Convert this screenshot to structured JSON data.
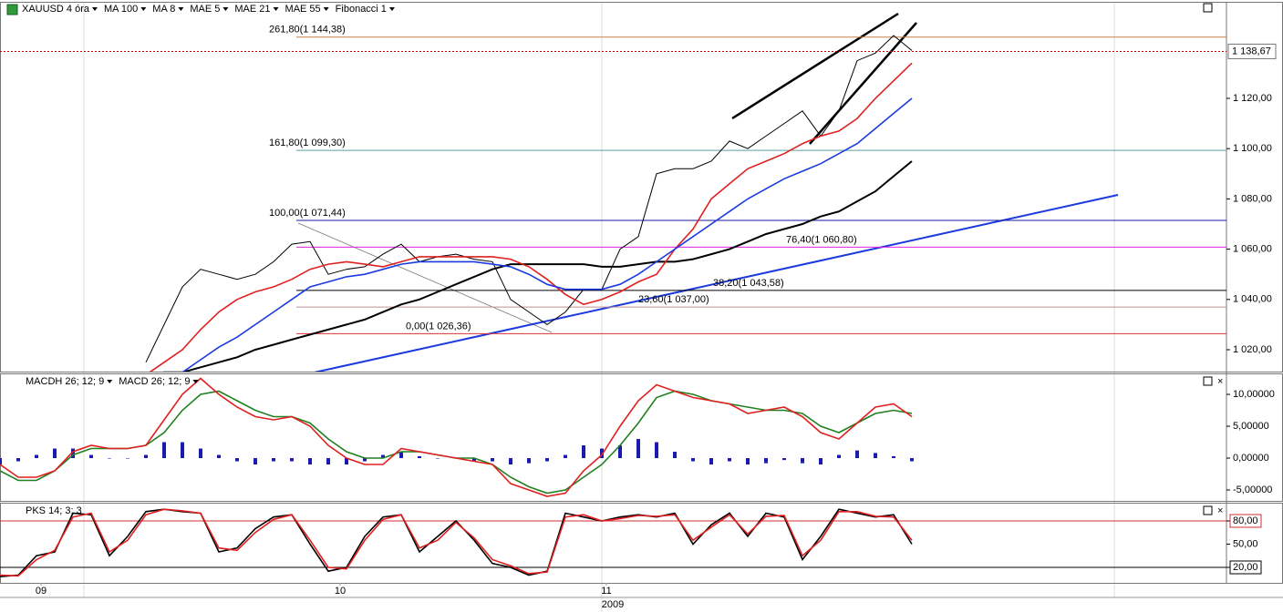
{
  "chart_data": [
    {
      "type": "line",
      "symbol": "XAUUSD 4 óra",
      "indicators": [
        {
          "name": "MA 8",
          "color": "#000000"
        },
        {
          "name": "MAE 5",
          "color": "#d02020"
        },
        {
          "name": "Fibonacci 1",
          "color": "#000000"
        }
      ],
      "xlim": [
        -8,
        59.25
      ],
      "xticks": [
        {
          "value": -5.75,
          "label": "09"
        },
        {
          "value": 10.65,
          "label": "10"
        },
        {
          "value": 25.25,
          "label": "11"
        }
      ],
      "year": "2009",
      "ylim": [
        1011.3,
        1158.4
      ],
      "yticks": [
        {
          "value": 1020,
          "label": "1 020,00"
        },
        {
          "value": 1040,
          "label": "1 040,00"
        },
        {
          "value": 1060,
          "label": "1 060,00"
        },
        {
          "value": 1080,
          "label": "1 080,00"
        },
        {
          "value": 1100,
          "label": "1 100,00"
        },
        {
          "value": 1120,
          "label": "1 120,00"
        }
      ],
      "last": {
        "value": 1138.67,
        "label": "1 138,67",
        "color": "#c00000"
      },
      "levels": [
        {
          "label": "261,80(1 144,38)",
          "value": 1144.38,
          "color": "#c8804a"
        },
        {
          "label": "161,80(1 099,30)",
          "value": 1099.3,
          "color": "#5f9ea0"
        },
        {
          "label": "100,00(1 071,44)",
          "value": 1071.44,
          "color": "#1a1aa0"
        },
        {
          "label": "76,40(1 060,80)",
          "value": 1060.8,
          "color": "#e020e0"
        },
        {
          "label": "38,20(1 043,58)",
          "value": 1043.58,
          "color": "#000000"
        },
        {
          "label": "23,60(1 037,00)",
          "value": 1037.0,
          "color": "#c09090"
        },
        {
          "label": "0,00(1 026,36)",
          "value": 1026.36,
          "color": "#e03030"
        }
      ],
      "series": [
        {
          "name": "XAUUSD 4 óra",
          "color": "#000000",
          "values": [
            1015,
            1030,
            1045,
            1052,
            1050,
            1048,
            1050,
            1055,
            1062,
            1063,
            1050,
            1052,
            1053,
            1058,
            1062,
            1055,
            1057,
            1058,
            1056,
            1055,
            1040,
            1035,
            1030,
            1035,
            1044,
            1044,
            1060,
            1065,
            1090,
            1092,
            1092,
            1095,
            1103,
            1100,
            1105,
            1110,
            1115,
            1105,
            1115,
            1135,
            1138,
            1145,
            1139
          ]
        },
        {
          "name": "MA 100",
          "color": "#000000",
          "values": [
            1010,
            1011,
            1011,
            1013,
            1015,
            1017,
            1020,
            1022,
            1024,
            1026,
            1028,
            1030,
            1032,
            1035,
            1038,
            1040,
            1043,
            1046,
            1049,
            1052,
            1054,
            1054,
            1054,
            1054,
            1054,
            1053,
            1053,
            1054,
            1055,
            1055,
            1056,
            1058,
            1060,
            1063,
            1066,
            1068,
            1070,
            1073,
            1075,
            1079,
            1083,
            1089,
            1095
          ]
        },
        {
          "name": "MAE 21",
          "color": "#e02020",
          "values": [
            1010,
            1015,
            1020,
            1028,
            1035,
            1040,
            1043,
            1045,
            1048,
            1052,
            1054,
            1055,
            1054,
            1053,
            1055,
            1057,
            1057,
            1057,
            1057,
            1057,
            1056,
            1053,
            1048,
            1042,
            1038,
            1040,
            1043,
            1047,
            1050,
            1060,
            1068,
            1080,
            1086,
            1092,
            1095,
            1098,
            1102,
            1105,
            1107,
            1112,
            1120,
            1127,
            1134
          ]
        },
        {
          "name": "MAE 55",
          "color": "#1a3ae0",
          "values": [
            null,
            null,
            1011,
            1016,
            1021,
            1025,
            1030,
            1035,
            1040,
            1045,
            1047,
            1049,
            1050,
            1052,
            1054,
            1055,
            1055,
            1055,
            1055,
            1054,
            1053,
            1050,
            1046,
            1044,
            1044,
            1044,
            1046,
            1050,
            1055,
            1060,
            1065,
            1070,
            1075,
            1080,
            1084,
            1088,
            1091,
            1094,
            1098,
            1102,
            1108,
            1114,
            1120
          ]
        }
      ]
    },
    {
      "type": "line",
      "xlim": [
        0,
        67.25
      ],
      "ylim": [
        -6.71,
        13.29
      ],
      "yticks": [
        {
          "value": 10,
          "label": "10,00000"
        },
        {
          "value": 5,
          "label": "5,00000"
        },
        {
          "value": 0,
          "label": "0,00000"
        },
        {
          "value": -5,
          "label": "-5,00000"
        }
      ],
      "series": [
        {
          "name": "MACDH 26; 12; 9",
          "color": "#1a1ab0",
          "style": "bar",
          "values": [
            -1,
            -0.5,
            0.5,
            1.5,
            1.5,
            0.5,
            0,
            0,
            0.5,
            2.5,
            2.5,
            1.5,
            0.5,
            -0.5,
            -1,
            -0.5,
            -0.5,
            -1,
            -1,
            -1,
            -0.5,
            0.5,
            1,
            0.3,
            0,
            0,
            -0.5,
            -0.5,
            -1,
            -0.8,
            -0.5,
            0.5,
            2,
            1.5,
            2,
            3,
            2.5,
            1,
            -0.5,
            -1,
            -0.5,
            -1,
            -0.8,
            -0.3,
            -0.8,
            -1,
            0.5,
            1.2,
            0.8,
            0.3,
            -0.5
          ]
        },
        {
          "name": "MACD 26; 12; 9",
          "color": "#208020",
          "values": [
            -2,
            -3.5,
            -3.5,
            -2,
            0.5,
            1.5,
            1.5,
            1.5,
            2,
            4,
            7.5,
            10,
            10.5,
            9,
            7.5,
            6.5,
            6.5,
            5.5,
            3,
            1,
            0,
            0,
            1,
            1,
            0.5,
            0,
            0,
            -1,
            -3,
            -4.5,
            -5.5,
            -5,
            -3,
            -1,
            2,
            5.5,
            9.5,
            10.5,
            10,
            9,
            8.5,
            8,
            7.5,
            7.5,
            7,
            5,
            4,
            5.5,
            7,
            7.5,
            7
          ]
        },
        {
          "color": "#e02020",
          "values": [
            -1,
            -3,
            -3,
            -2,
            1,
            2,
            1.5,
            1.5,
            2,
            6,
            10,
            12.5,
            10,
            8,
            6.5,
            6,
            6.5,
            5,
            2,
            0,
            -1,
            -1,
            1.5,
            1,
            0.5,
            0,
            -0.5,
            -1,
            -4,
            -5,
            -6,
            -5.5,
            -2,
            0.5,
            5,
            9,
            11.5,
            10.5,
            9.5,
            9,
            8.5,
            7,
            7.5,
            8,
            6.5,
            4,
            3,
            5.5,
            8,
            8.5,
            6.5
          ]
        }
      ]
    },
    {
      "type": "line",
      "title": "PKS 14; 3; 3",
      "xlim": [
        0,
        67.25
      ],
      "ylim": [
        0,
        103.5
      ],
      "yticks": [
        {
          "value": 80,
          "label": "80,00"
        },
        {
          "value": 50,
          "label": "50,00"
        },
        {
          "value": 20,
          "label": "20,00"
        }
      ],
      "levels": [
        {
          "value": 80,
          "color": "#d03030"
        },
        {
          "value": 20,
          "color": "#000000"
        }
      ],
      "series": [
        {
          "color": "#000000",
          "values": [
            8,
            10,
            35,
            40,
            90,
            88,
            35,
            60,
            92,
            95,
            92,
            90,
            40,
            45,
            70,
            85,
            88,
            50,
            15,
            20,
            60,
            85,
            88,
            40,
            60,
            80,
            55,
            25,
            20,
            10,
            15,
            90,
            85,
            80,
            85,
            88,
            85,
            90,
            50,
            75,
            90,
            60,
            90,
            85,
            30,
            60,
            95,
            90,
            85,
            88,
            50
          ]
        },
        {
          "color": "#e02020",
          "values": [
            10,
            9,
            30,
            42,
            85,
            90,
            40,
            55,
            88,
            95,
            93,
            90,
            45,
            42,
            65,
            82,
            88,
            55,
            20,
            18,
            55,
            82,
            88,
            45,
            55,
            78,
            58,
            30,
            22,
            12,
            14,
            85,
            88,
            80,
            83,
            87,
            86,
            88,
            55,
            72,
            88,
            63,
            86,
            87,
            35,
            55,
            92,
            92,
            86,
            85,
            55
          ]
        }
      ]
    }
  ]
}
